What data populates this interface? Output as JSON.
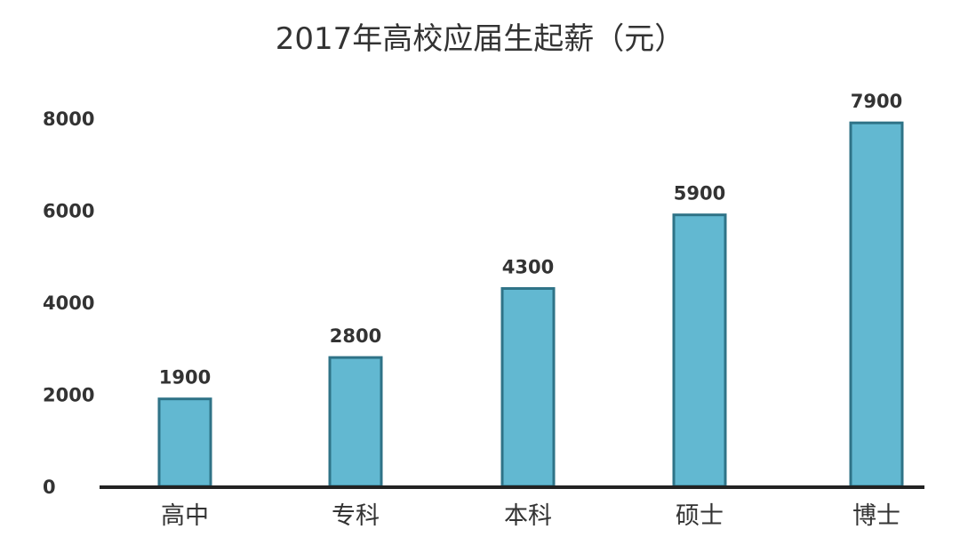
{
  "chart_data": {
    "type": "bar",
    "title": "2017年高校应届生起薪（元）",
    "xlabel": "",
    "ylabel": "",
    "categories": [
      "高中",
      "专科",
      "本科",
      "硕士",
      "博士"
    ],
    "values": [
      1900,
      2800,
      4300,
      5900,
      7900
    ],
    "data_labels": [
      "1900",
      "2800",
      "4300",
      "5900",
      "7900"
    ],
    "ylim": [
      0,
      8000
    ],
    "yticks": [
      0,
      2000,
      4000,
      6000,
      8000
    ],
    "ytick_labels": [
      "0",
      "2000",
      "4000",
      "6000",
      "8000"
    ],
    "grid": false,
    "legend": "none",
    "colors": {
      "bar_fill": "#62b8d1",
      "bar_stroke": "#2f7387",
      "axis": "#222222",
      "text": "#333333"
    }
  }
}
